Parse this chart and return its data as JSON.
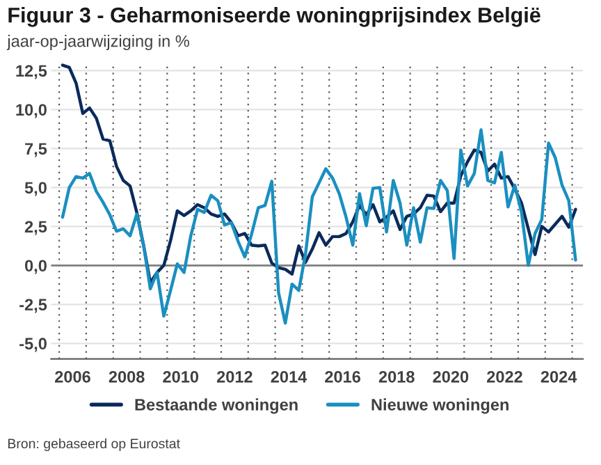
{
  "chart_data": {
    "type": "line",
    "title": "Figuur 3 - Geharmoniseerde woningprijsindex België",
    "subtitle": "jaar-op-jaarwijziging in %",
    "annotations": [
      "Bron: gebaseerd op Eurostat"
    ],
    "x": [
      2006.125,
      2006.375,
      2006.625,
      2006.875,
      2007.125,
      2007.375,
      2007.625,
      2007.875,
      2008.125,
      2008.375,
      2008.625,
      2008.875,
      2009.125,
      2009.375,
      2009.625,
      2009.875,
      2010.125,
      2010.375,
      2010.625,
      2010.875,
      2011.125,
      2011.375,
      2011.625,
      2011.875,
      2012.125,
      2012.375,
      2012.625,
      2012.875,
      2013.125,
      2013.375,
      2013.625,
      2013.875,
      2014.125,
      2014.375,
      2014.625,
      2014.875,
      2015.125,
      2015.375,
      2015.625,
      2015.875,
      2016.125,
      2016.375,
      2016.625,
      2016.875,
      2017.125,
      2017.375,
      2017.625,
      2017.875,
      2018.125,
      2018.375,
      2018.625,
      2018.875,
      2019.125,
      2019.375,
      2019.625,
      2019.875,
      2020.125,
      2020.375,
      2020.625,
      2020.875,
      2021.125,
      2021.375,
      2021.625,
      2021.875,
      2022.125,
      2022.375,
      2022.625,
      2022.875,
      2023.125,
      2023.375,
      2023.625,
      2023.875,
      2024.125,
      2024.375,
      2024.625,
      2024.875,
      2025.125
    ],
    "series": [
      {
        "name": "Bestaande woningen",
        "color": "#0b2a5b",
        "values": [
          12.85,
          12.7,
          11.7,
          9.75,
          10.1,
          9.45,
          8.1,
          8.0,
          6.35,
          5.45,
          5.1,
          3.4,
          1.3,
          -1.1,
          -0.45,
          0.0,
          1.6,
          3.5,
          3.2,
          3.5,
          3.9,
          3.7,
          3.3,
          3.15,
          3.3,
          2.75,
          1.9,
          2.05,
          1.3,
          1.25,
          1.3,
          0.15,
          -0.15,
          -0.25,
          -0.55,
          1.25,
          0.2,
          1.05,
          2.1,
          1.3,
          1.85,
          1.85,
          2.05,
          2.8,
          3.85,
          3.25,
          3.9,
          2.8,
          3.1,
          3.5,
          2.3,
          3.15,
          3.3,
          3.7,
          4.5,
          4.45,
          3.45,
          4.0,
          4.0,
          5.75,
          6.65,
          7.4,
          7.25,
          6.05,
          6.5,
          5.6,
          5.7,
          4.9,
          4.0,
          2.35,
          0.7,
          2.5,
          2.15,
          2.65,
          3.15,
          2.45,
          3.6
        ]
      },
      {
        "name": "Nieuwe woningen",
        "color": "#1a8fc0",
        "values": [
          3.1,
          5.0,
          5.7,
          5.6,
          5.9,
          4.75,
          4.05,
          3.25,
          2.2,
          2.35,
          1.9,
          3.3,
          1.3,
          -1.5,
          -0.45,
          -3.25,
          -1.6,
          0.1,
          -0.45,
          1.9,
          3.6,
          3.4,
          4.5,
          4.15,
          2.6,
          2.75,
          1.55,
          0.55,
          2.0,
          3.7,
          3.85,
          5.4,
          -1.75,
          -3.7,
          -1.2,
          -1.6,
          0.75,
          4.4,
          5.3,
          6.2,
          5.6,
          4.6,
          3.1,
          1.3,
          4.6,
          2.55,
          4.95,
          5.0,
          2.15,
          5.45,
          4.0,
          1.3,
          3.7,
          1.5,
          3.7,
          3.65,
          5.45,
          4.8,
          0.45,
          7.4,
          5.1,
          5.9,
          8.7,
          5.45,
          5.3,
          7.25,
          3.75,
          5.15,
          3.4,
          0.0,
          2.05,
          2.95,
          7.85,
          6.9,
          5.15,
          4.15,
          0.35
        ]
      }
    ],
    "xlim": [
      2005.7,
      2025.4
    ],
    "xticks": [
      {
        "value": 2006,
        "label": null
      },
      {
        "value": 2007,
        "label": null
      },
      {
        "value": 2008,
        "label": null
      },
      {
        "value": 2009,
        "label": null
      },
      {
        "value": 2010,
        "label": null
      },
      {
        "value": 2011,
        "label": null
      },
      {
        "value": 2012,
        "label": null
      },
      {
        "value": 2013,
        "label": null
      },
      {
        "value": 2014,
        "label": null
      },
      {
        "value": 2015,
        "label": null
      },
      {
        "value": 2016,
        "label": null
      },
      {
        "value": 2017,
        "label": null
      },
      {
        "value": 2018,
        "label": null
      },
      {
        "value": 2019,
        "label": null
      },
      {
        "value": 2020,
        "label": null
      },
      {
        "value": 2021,
        "label": null
      },
      {
        "value": 2022,
        "label": null
      },
      {
        "value": 2023,
        "label": null
      },
      {
        "value": 2024,
        "label": null
      },
      {
        "value": 2025,
        "label": null
      },
      {
        "value": 2006.5,
        "label": "2006"
      },
      {
        "value": 2008.5,
        "label": "2008"
      },
      {
        "value": 2010.5,
        "label": "2010"
      },
      {
        "value": 2012.5,
        "label": "2012"
      },
      {
        "value": 2014.5,
        "label": "2014"
      },
      {
        "value": 2016.5,
        "label": "2016"
      },
      {
        "value": 2018.5,
        "label": "2018"
      },
      {
        "value": 2020.5,
        "label": "2020"
      },
      {
        "value": 2022.5,
        "label": "2022"
      },
      {
        "value": 2024.5,
        "label": "2024"
      }
    ],
    "ylim": [
      -6,
      13
    ],
    "yticks": [
      {
        "value": -5,
        "label": "-5,0"
      },
      {
        "value": -2.5,
        "label": "-2,5"
      },
      {
        "value": 0,
        "label": "0,0"
      },
      {
        "value": 2.5,
        "label": "2,5"
      },
      {
        "value": 5,
        "label": "5,0"
      },
      {
        "value": 7.5,
        "label": "7,5"
      },
      {
        "value": 10,
        "label": "10,0"
      },
      {
        "value": 12.5,
        "label": "12,5"
      }
    ],
    "ref_lines": [
      {
        "axis": "y",
        "value": 0,
        "color": "#7f7f7f"
      }
    ],
    "grid": true,
    "legend": "bottom",
    "marker": "none",
    "line_style": "solid"
  }
}
